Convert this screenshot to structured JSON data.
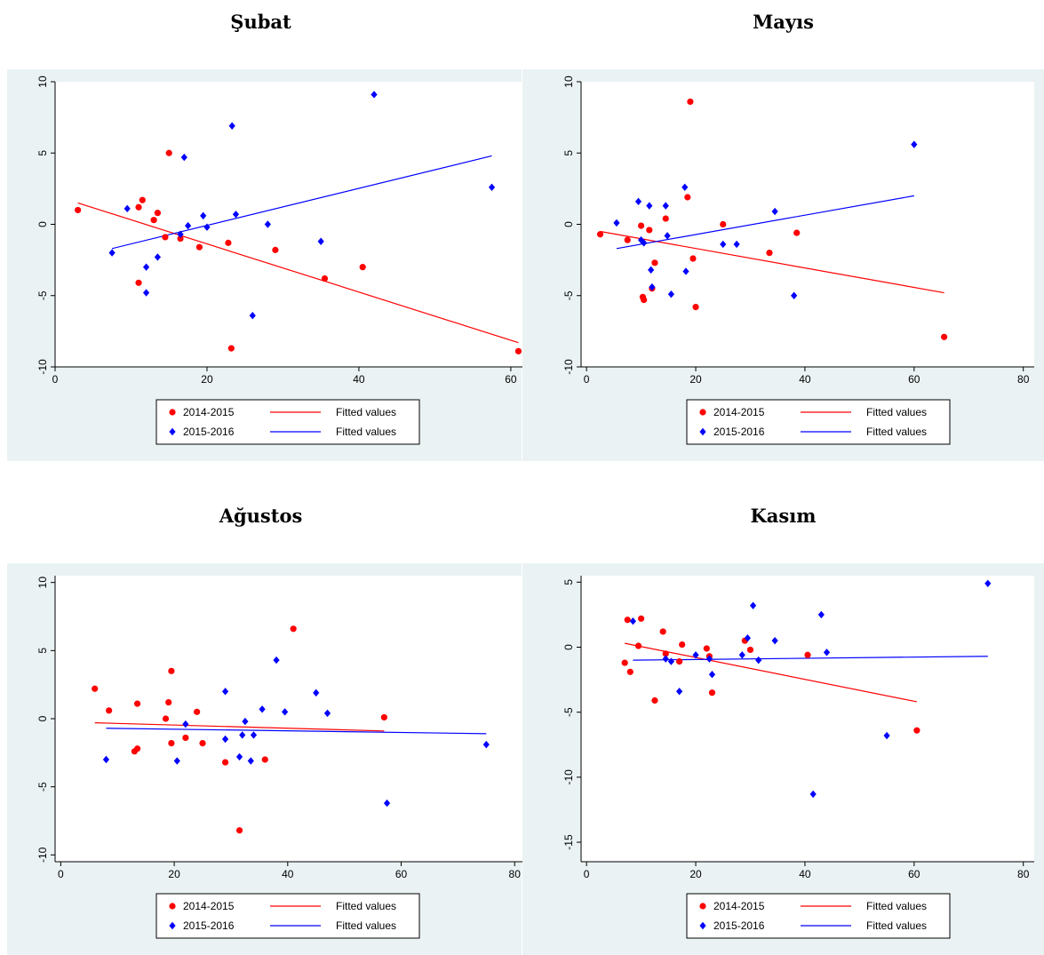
{
  "panels": [
    {
      "title": "Şubat",
      "chart_data": {
        "type": "scatter",
        "xlim": [
          0,
          62
        ],
        "ylim": [
          -10,
          10
        ],
        "xticks": [
          0,
          20,
          40,
          60
        ],
        "yticks": [
          -10,
          -5,
          0,
          5,
          10
        ],
        "series": [
          {
            "name": "2014-2015",
            "color": "#ff0000",
            "marker": "circle",
            "x": [
              3,
              11,
              11.5,
              11,
              13,
              13.5,
              14.5,
              15,
              16.5,
              19,
              22.8,
              23.2,
              29,
              35.5,
              40.5,
              61
            ],
            "y": [
              1,
              -4.1,
              1.7,
              1.2,
              0.3,
              0.8,
              -0.9,
              5,
              -1,
              -1.6,
              -1.3,
              -8.7,
              -1.8,
              -3.8,
              -3,
              -8.9
            ]
          },
          {
            "name": "2015-2016",
            "color": "#0000ff",
            "marker": "diamond",
            "x": [
              7.5,
              9.5,
              12,
              12,
              13.5,
              16.5,
              17,
              17.5,
              19.5,
              20,
              23.3,
              23.8,
              26,
              28,
              35,
              42,
              57.5
            ],
            "y": [
              -2,
              1.1,
              -3,
              -4.8,
              -2.3,
              -0.7,
              4.7,
              -0.1,
              0.6,
              -0.2,
              6.9,
              0.7,
              -6.4,
              0,
              -1.2,
              9.1,
              2.6
            ]
          }
        ],
        "fits": [
          {
            "name": "Fitted values",
            "color": "#ff0000",
            "x": [
              3,
              61
            ],
            "y": [
              1.5,
              -8.3
            ]
          },
          {
            "name": "Fitted values",
            "color": "#0000ff",
            "x": [
              7.5,
              57.5
            ],
            "y": [
              -1.7,
              4.8
            ]
          }
        ]
      }
    },
    {
      "title": "Mayıs",
      "chart_data": {
        "type": "scatter",
        "xlim": [
          -1,
          82
        ],
        "ylim": [
          -10,
          10
        ],
        "xticks": [
          0,
          20,
          40,
          60,
          80
        ],
        "yticks": [
          -10,
          -5,
          0,
          5,
          10
        ],
        "series": [
          {
            "name": "2014-2015",
            "color": "#ff0000",
            "marker": "circle",
            "x": [
              2.5,
              7.5,
              10,
              10.3,
              10.5,
              11.5,
              12,
              12.5,
              14.5,
              18.5,
              19,
              19.5,
              20,
              25,
              33.5,
              38.5,
              65.5
            ],
            "y": [
              -0.7,
              -1.1,
              -0.1,
              -5.1,
              -5.3,
              -0.4,
              -4.5,
              -2.7,
              0.4,
              1.9,
              8.6,
              -2.4,
              -5.8,
              0,
              -2,
              -0.6,
              -7.9
            ]
          },
          {
            "name": "2015-2016",
            "color": "#0000ff",
            "marker": "diamond",
            "x": [
              5.5,
              9.5,
              10,
              10.5,
              11.5,
              11.8,
              12,
              14.5,
              14.8,
              15.5,
              18,
              18.2,
              25,
              27.5,
              34.5,
              38,
              60
            ],
            "y": [
              0.1,
              1.6,
              -1.1,
              -1.3,
              1.3,
              -3.2,
              -4.4,
              1.3,
              -0.8,
              -4.9,
              2.6,
              -3.3,
              -1.4,
              -1.4,
              0.9,
              -5,
              5.6
            ]
          }
        ],
        "fits": [
          {
            "name": "Fitted values",
            "color": "#ff0000",
            "x": [
              2.5,
              65.5
            ],
            "y": [
              -0.5,
              -4.8
            ]
          },
          {
            "name": "Fitted values",
            "color": "#0000ff",
            "x": [
              5.5,
              60
            ],
            "y": [
              -1.7,
              2
            ]
          }
        ]
      }
    },
    {
      "title": "Ağustos",
      "chart_data": {
        "type": "scatter",
        "xlim": [
          -1,
          82
        ],
        "ylim": [
          -10.5,
          10.5
        ],
        "xticks": [
          0,
          20,
          40,
          60,
          80
        ],
        "yticks": [
          -10,
          -5,
          0,
          5,
          10
        ],
        "series": [
          {
            "name": "2014-2015",
            "color": "#ff0000",
            "marker": "circle",
            "x": [
              6,
              8.5,
              13,
              13.5,
              13.5,
              18.5,
              19,
              19.5,
              19.5,
              22,
              24,
              25,
              29,
              31.5,
              36,
              41,
              57
            ],
            "y": [
              2.2,
              0.6,
              -2.4,
              -2.2,
              1.1,
              0,
              1.2,
              3.5,
              -1.8,
              -1.4,
              0.5,
              -1.8,
              -3.2,
              -8.2,
              -3,
              6.6,
              0.1
            ]
          },
          {
            "name": "2015-2016",
            "color": "#0000ff",
            "marker": "diamond",
            "x": [
              8,
              20.5,
              22,
              29,
              29,
              31.5,
              32,
              32.5,
              33.5,
              34,
              35.5,
              38,
              39.5,
              45,
              47,
              57.5,
              75
            ],
            "y": [
              -3,
              -3.1,
              -0.4,
              -1.5,
              2,
              -2.8,
              -1.2,
              -0.2,
              -3.1,
              -1.2,
              0.7,
              4.3,
              0.5,
              1.9,
              0.4,
              -6.2,
              -1.9
            ]
          }
        ],
        "fits": [
          {
            "name": "Fitted values",
            "color": "#ff0000",
            "x": [
              6,
              57
            ],
            "y": [
              -0.3,
              -0.9
            ]
          },
          {
            "name": "Fitted values",
            "color": "#0000ff",
            "x": [
              8,
              75
            ],
            "y": [
              -0.7,
              -1.1
            ]
          }
        ]
      }
    },
    {
      "title": "Kasım",
      "chart_data": {
        "type": "scatter",
        "xlim": [
          -1,
          82
        ],
        "ylim": [
          -16.5,
          5.5
        ],
        "xticks": [
          0,
          20,
          40,
          60,
          80
        ],
        "yticks": [
          -15,
          -10,
          -5,
          0,
          5
        ],
        "series": [
          {
            "name": "2014-2015",
            "color": "#ff0000",
            "marker": "circle",
            "x": [
              7,
              7.5,
              8,
              9.5,
              10,
              12.5,
              14,
              14.5,
              17,
              17.5,
              22,
              22.5,
              23,
              29,
              30,
              40.5,
              60.5
            ],
            "y": [
              -1.2,
              2.1,
              -1.9,
              0.1,
              2.2,
              -4.1,
              1.2,
              -0.5,
              -1.1,
              0.2,
              -0.1,
              -0.7,
              -3.5,
              0.5,
              -0.2,
              -0.6,
              -6.4
            ]
          },
          {
            "name": "2015-2016",
            "color": "#0000ff",
            "marker": "diamond",
            "x": [
              8.5,
              14.5,
              15.5,
              17,
              20,
              22.5,
              23,
              28.5,
              29.5,
              30.5,
              31.5,
              34.5,
              41.5,
              43,
              44,
              55,
              73.5
            ],
            "y": [
              2,
              -0.9,
              -1.1,
              -3.4,
              -0.6,
              -0.9,
              -2.1,
              -0.6,
              0.7,
              3.2,
              -1,
              0.5,
              -11.3,
              2.5,
              -0.4,
              -6.8,
              4.9
            ]
          }
        ],
        "fits": [
          {
            "name": "Fitted values",
            "color": "#ff0000",
            "x": [
              7,
              60.5
            ],
            "y": [
              0.3,
              -4.2
            ]
          },
          {
            "name": "Fitted values",
            "color": "#0000ff",
            "x": [
              8.5,
              73.5
            ],
            "y": [
              -1,
              -0.7
            ]
          }
        ]
      }
    }
  ]
}
